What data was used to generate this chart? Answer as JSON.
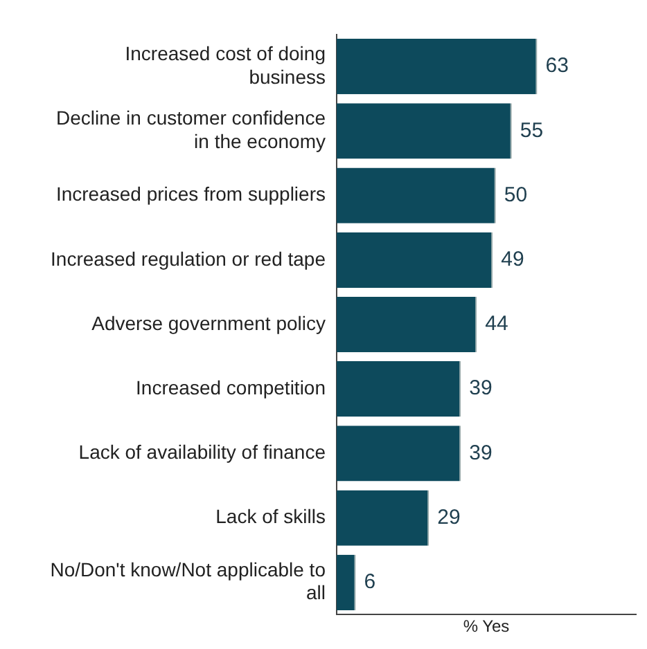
{
  "chart_data": {
    "type": "bar",
    "orientation": "horizontal",
    "xlabel": "% Yes",
    "categories": [
      "Increased cost of doing business",
      "Decline in customer confidence in the economy",
      "Increased prices from suppliers",
      "Increased regulation or red tape",
      "Adverse government policy",
      "Increased competition",
      "Lack of availability of finance",
      "Lack of skills",
      "No/Don't know/Not applicable to all"
    ],
    "values": [
      63,
      55,
      50,
      49,
      44,
      39,
      39,
      29,
      6
    ],
    "color": "#0d4a5c",
    "xlim": [
      0,
      94
    ],
    "data_labels": true,
    "legend": false,
    "tick_labels": "y"
  }
}
